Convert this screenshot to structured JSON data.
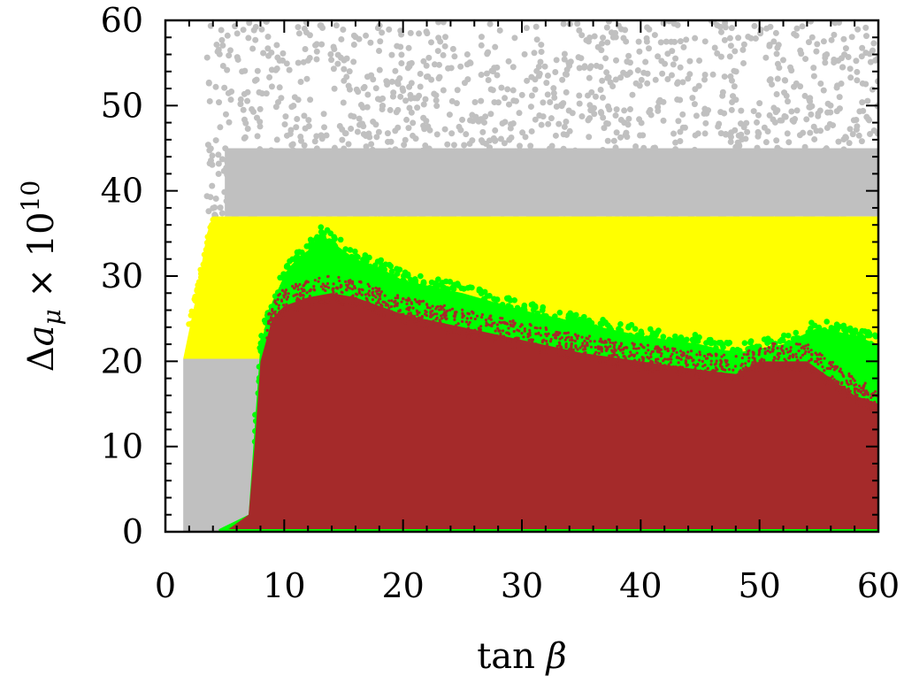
{
  "chart_data": {
    "type": "scatter",
    "xlabel": "tan β",
    "ylabel": "Δa_μ × 10^10",
    "xlim": [
      0,
      60
    ],
    "ylim": [
      0,
      60
    ],
    "xticks": [
      "0",
      "10",
      "20",
      "30",
      "40",
      "50",
      "60"
    ],
    "yticks": [
      "0",
      "10",
      "20",
      "30",
      "40",
      "50",
      "60"
    ],
    "grid": false,
    "legend": "none",
    "series": [
      {
        "color": "#c0c0c0",
        "region": {
          "upper_band": {
            "x": [
              3.5,
              60
            ],
            "y_lower": 37,
            "y_upper": 60
          },
          "lower_band": {
            "x": [
              1.5,
              8
            ],
            "y_lower": 0,
            "y_upper": 20.3
          }
        }
      },
      {
        "color": "#ffff00",
        "region": {
          "x": [
            1.5,
            60
          ],
          "y_upper": 37,
          "boundary": [
            [
              1.5,
              20.3
            ],
            [
              2.5,
              27
            ],
            [
              3.5,
              35
            ],
            [
              4,
              37
            ],
            [
              60,
              37
            ]
          ]
        }
      },
      {
        "color": "#00ff00",
        "upper_envelope": [
          [
            4.5,
            0.3
          ],
          [
            7,
            2
          ],
          [
            7.5,
            12
          ],
          [
            8,
            22
          ],
          [
            9,
            27
          ],
          [
            10,
            30
          ],
          [
            11,
            32
          ],
          [
            12,
            33
          ],
          [
            13,
            35
          ],
          [
            14,
            34
          ],
          [
            16,
            32
          ],
          [
            18,
            31
          ],
          [
            20,
            29.5
          ],
          [
            25,
            28
          ],
          [
            30,
            26
          ],
          [
            35,
            24.5
          ],
          [
            40,
            23
          ],
          [
            45,
            22
          ],
          [
            48,
            21
          ],
          [
            52,
            22
          ],
          [
            55,
            24
          ],
          [
            58,
            23
          ],
          [
            60,
            22
          ]
        ]
      },
      {
        "color": "#a52a2a",
        "upper_envelope": [
          [
            5,
            0
          ],
          [
            7,
            2
          ],
          [
            7.5,
            10
          ],
          [
            8,
            20
          ],
          [
            9,
            25
          ],
          [
            10,
            26.5
          ],
          [
            12,
            27.5
          ],
          [
            14,
            28
          ],
          [
            16,
            27.5
          ],
          [
            18,
            26.5
          ],
          [
            20,
            25.5
          ],
          [
            25,
            24
          ],
          [
            30,
            22.5
          ],
          [
            35,
            21
          ],
          [
            40,
            20
          ],
          [
            45,
            19
          ],
          [
            48,
            18.5
          ],
          [
            50,
            20
          ],
          [
            54,
            20
          ],
          [
            56,
            18
          ],
          [
            58,
            16
          ],
          [
            60,
            15
          ]
        ]
      }
    ]
  }
}
